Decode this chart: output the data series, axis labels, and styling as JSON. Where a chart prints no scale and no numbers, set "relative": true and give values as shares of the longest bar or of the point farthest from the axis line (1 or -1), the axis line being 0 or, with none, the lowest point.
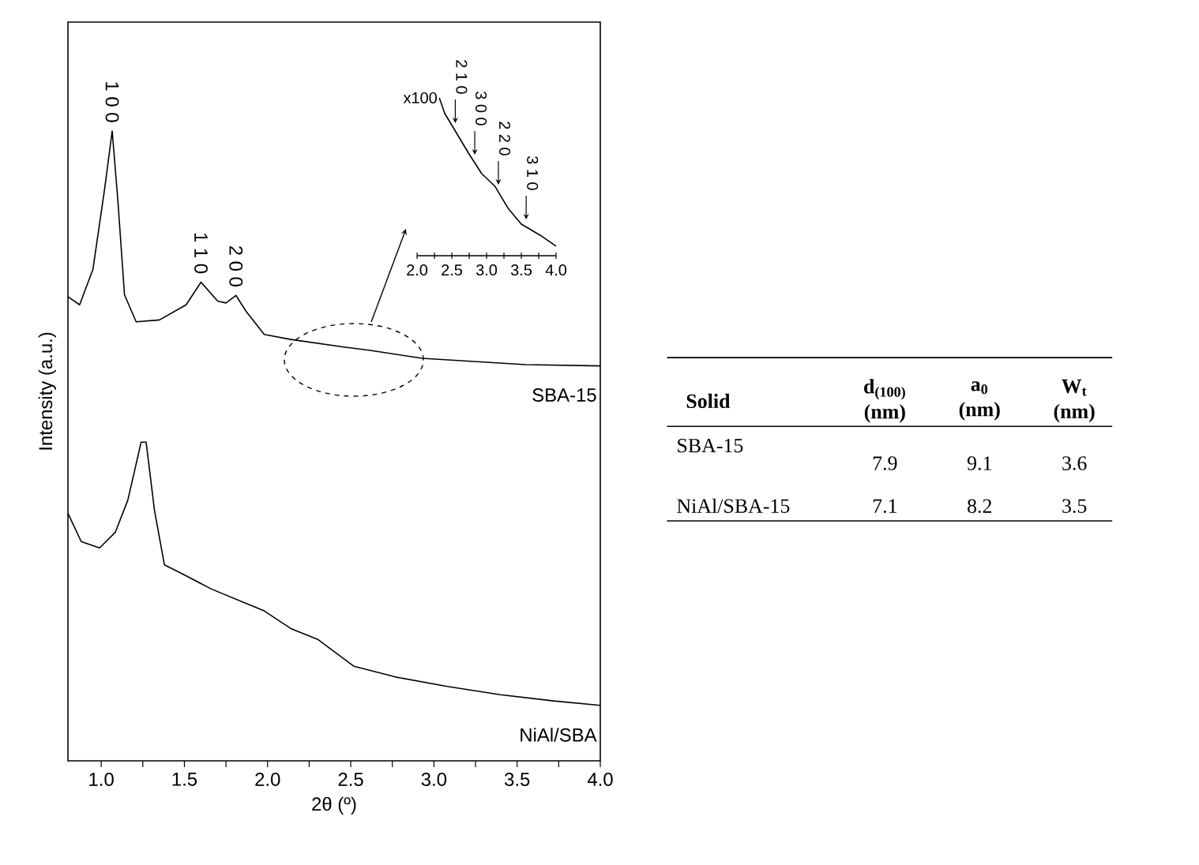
{
  "chart_data": [
    {
      "type": "line",
      "relative": true,
      "xlabel": "2θ (º)",
      "ylabel": "Intensity (a.u.)",
      "xlim": [
        0.8,
        4.0
      ],
      "xticks": [
        {
          "value": 1.0,
          "label": "1.0"
        },
        {
          "value": 1.25,
          "label": null
        },
        1.5,
        {
          "value": 1.75,
          "label": null
        },
        {
          "value": 2.0,
          "label": "2.0"
        },
        {
          "value": 2.25,
          "label": null
        },
        2.5,
        {
          "value": 2.75,
          "label": null
        },
        {
          "value": 3.0,
          "label": "3.0"
        },
        {
          "value": 3.25,
          "label": null
        },
        3.5,
        {
          "value": 3.75,
          "label": null
        },
        {
          "value": 4.0,
          "label": "4.0"
        }
      ],
      "series": [
        {
          "name": "SBA-15",
          "color": "#000000",
          "x": [
            0.8,
            0.87,
            0.95,
            1.02,
            1.066,
            1.1,
            1.14,
            1.21,
            1.35,
            1.51,
            1.6,
            1.7,
            1.75,
            1.81,
            1.87,
            1.98,
            2.14,
            2.46,
            2.61,
            2.93,
            3.24,
            3.55,
            4.0
          ],
          "values": [
            0.737,
            0.724,
            0.78,
            0.907,
            1.0,
            0.89,
            0.74,
            0.697,
            0.7,
            0.724,
            0.76,
            0.73,
            0.727,
            0.739,
            0.714,
            0.677,
            0.669,
            0.657,
            0.652,
            0.639,
            0.634,
            0.629,
            0.627
          ]
        },
        {
          "name": "NiAl/SBA",
          "color": "#000000",
          "x": [
            0.8,
            0.88,
            0.99,
            1.085,
            1.16,
            1.24,
            1.27,
            1.32,
            1.38,
            1.48,
            1.66,
            1.98,
            2.14,
            2.3,
            2.52,
            2.77,
            3.08,
            3.4,
            3.72,
            4.0
          ],
          "values": [
            0.393,
            0.348,
            0.338,
            0.363,
            0.414,
            0.506,
            0.506,
            0.398,
            0.311,
            0.298,
            0.273,
            0.238,
            0.21,
            0.193,
            0.15,
            0.133,
            0.118,
            0.105,
            0.095,
            0.088
          ]
        }
      ],
      "annotations": [
        {
          "text": "1 0 0",
          "x": 1.066,
          "y": 1.0
        },
        {
          "text": "1 1 0",
          "x": 1.6,
          "y": 0.76
        },
        {
          "text": "2 0 0",
          "x": 1.81,
          "y": 0.739
        }
      ]
    },
    {
      "type": "line",
      "relative": true,
      "xlim": [
        2.0,
        4.0
      ],
      "xticks": [
        {
          "value": 2.0,
          "label": "2.0"
        },
        {
          "value": 2.25,
          "label": null
        },
        2.5,
        {
          "value": 2.75,
          "label": null
        },
        {
          "value": 3.0,
          "label": "3.0"
        },
        {
          "value": 3.25,
          "label": null
        },
        3.5,
        {
          "value": 3.75,
          "label": null
        },
        {
          "value": 4.0,
          "label": "4.0"
        }
      ],
      "series": [
        {
          "color": "#000000",
          "x": [
            2.32,
            2.4,
            2.55,
            2.74,
            2.93,
            3.12,
            3.31,
            3.5,
            3.77,
            4.0
          ],
          "values": [
            1.0,
            0.9,
            0.79,
            0.65,
            0.52,
            0.44,
            0.3,
            0.2,
            0.13,
            0.06
          ]
        }
      ],
      "annotations": [
        "x100",
        {
          "text": "2 1 0",
          "x": 2.55,
          "y": 0.79
        },
        {
          "text": "3 0 0",
          "x": 2.83,
          "y": 0.59
        },
        {
          "text": "2 2 0",
          "x": 3.17,
          "y": 0.4
        },
        {
          "text": "3 1 0",
          "x": 3.57,
          "y": 0.18
        }
      ]
    },
    {
      "type": "other",
      "categories": [
        "Solid",
        "d$_{(100)}$ (nm)",
        "a$_{0}$ (nm)",
        "W$_{t}$ (nm)"
      ],
      "y_categories": [
        "SBA-15",
        "NiAl/SBA-15"
      ],
      "cells": [
        [
          "7.9",
          "9.1",
          "3.6"
        ],
        [
          "7.1",
          "8.2",
          "3.5"
        ]
      ]
    }
  ]
}
